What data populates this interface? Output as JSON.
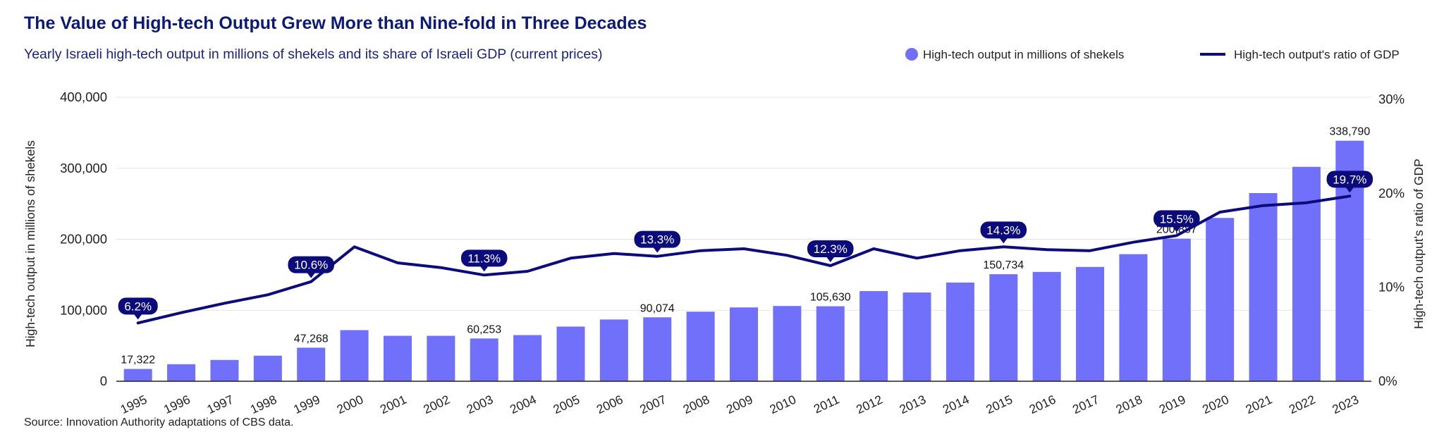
{
  "title": "The Value of High-tech Output Grew More than Nine-fold in Three Decades",
  "subtitle": "Yearly Israeli high-tech output in millions of shekels and its share of Israeli GDP (current prices)",
  "legend": {
    "bars": "High-tech output in millions of shekels",
    "line": "High-tech output's ratio of GDP"
  },
  "source": "Source: Innovation Authority adaptations of CBS data.",
  "colors": {
    "bar": "#7070fb",
    "line": "#0b0b7c",
    "title": "#0b1a78",
    "grid": "#e6e6e6"
  },
  "chart_data": {
    "type": "bar+line",
    "categories": [
      "1995",
      "1996",
      "1997",
      "1998",
      "1999",
      "2000",
      "2001",
      "2002",
      "2003",
      "2004",
      "2005",
      "2006",
      "2007",
      "2008",
      "2009",
      "2010",
      "2011",
      "2012",
      "2013",
      "2014",
      "2015",
      "2016",
      "2017",
      "2018",
      "2019",
      "2020",
      "2021",
      "2022",
      "2023"
    ],
    "series": [
      {
        "name": "High-tech output in millions of shekels",
        "type": "bar",
        "axis": "left",
        "values": [
          17322,
          24000,
          30000,
          36000,
          47268,
          72000,
          64000,
          64000,
          60253,
          65000,
          77000,
          87000,
          90074,
          98000,
          104000,
          106000,
          105630,
          127000,
          125000,
          139000,
          150734,
          154000,
          161000,
          179000,
          200887,
          230000,
          265000,
          302000,
          338790
        ]
      },
      {
        "name": "High-tech output's ratio of GDP",
        "type": "line",
        "axis": "right",
        "values": [
          6.2,
          7.3,
          8.3,
          9.2,
          10.6,
          14.3,
          12.6,
          12.1,
          11.3,
          11.7,
          13.1,
          13.6,
          13.3,
          13.9,
          14.1,
          13.4,
          12.3,
          14.1,
          13.1,
          13.9,
          14.3,
          14.0,
          13.9,
          14.8,
          15.5,
          18.0,
          18.7,
          19.0,
          19.7
        ]
      }
    ],
    "bar_labels": [
      {
        "category": "1995",
        "text": "17,322"
      },
      {
        "category": "1999",
        "text": "47,268"
      },
      {
        "category": "2003",
        "text": "60,253"
      },
      {
        "category": "2007",
        "text": "90,074"
      },
      {
        "category": "2011",
        "text": "105,630"
      },
      {
        "category": "2015",
        "text": "150,734"
      },
      {
        "category": "2019",
        "text": "200,887"
      },
      {
        "category": "2023",
        "text": "338,790"
      }
    ],
    "line_labels": [
      {
        "category": "1995",
        "text": "6.2%"
      },
      {
        "category": "1999",
        "text": "10.6%"
      },
      {
        "category": "2003",
        "text": "11.3%"
      },
      {
        "category": "2007",
        "text": "13.3%"
      },
      {
        "category": "2011",
        "text": "12.3%"
      },
      {
        "category": "2015",
        "text": "14.3%"
      },
      {
        "category": "2019",
        "text": "15.5%"
      },
      {
        "category": "2023",
        "text": "19.7%"
      }
    ],
    "ylabel": "High-tech output in millions of shekels",
    "y2label": "High-tech output's ratio of GDP",
    "ylim": [
      0,
      400000
    ],
    "y2lim": [
      0,
      30
    ],
    "yticks": [
      "0",
      "100,000",
      "200,000",
      "300,000",
      "400,000"
    ],
    "y2ticks": [
      "0%",
      "10%",
      "20%",
      "30%"
    ],
    "grid": true,
    "legend_position": "top-right"
  }
}
